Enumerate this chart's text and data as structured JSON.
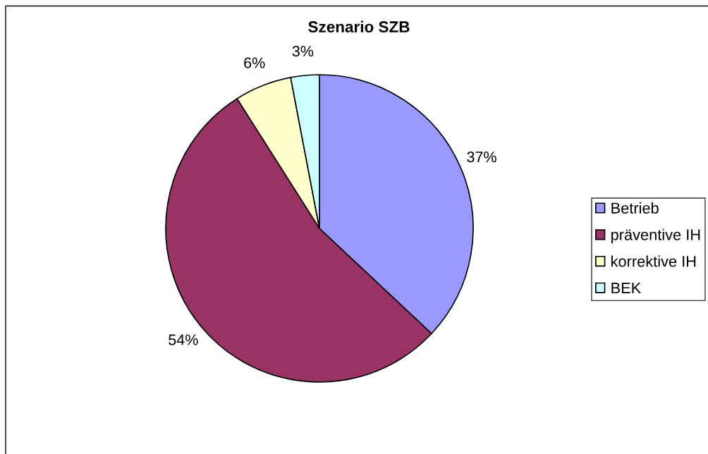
{
  "chart_data": {
    "type": "pie",
    "title": "Szenario SZB",
    "categories": [
      "Betrieb",
      "präventive IH",
      "korrektive IH",
      "BEK"
    ],
    "values": [
      37,
      54,
      6,
      3
    ],
    "colors": [
      "#9999ff",
      "#993366",
      "#ffffcc",
      "#ccffff"
    ],
    "value_labels": [
      "37%",
      "54%",
      "6%",
      "3%"
    ],
    "legend": "right"
  }
}
